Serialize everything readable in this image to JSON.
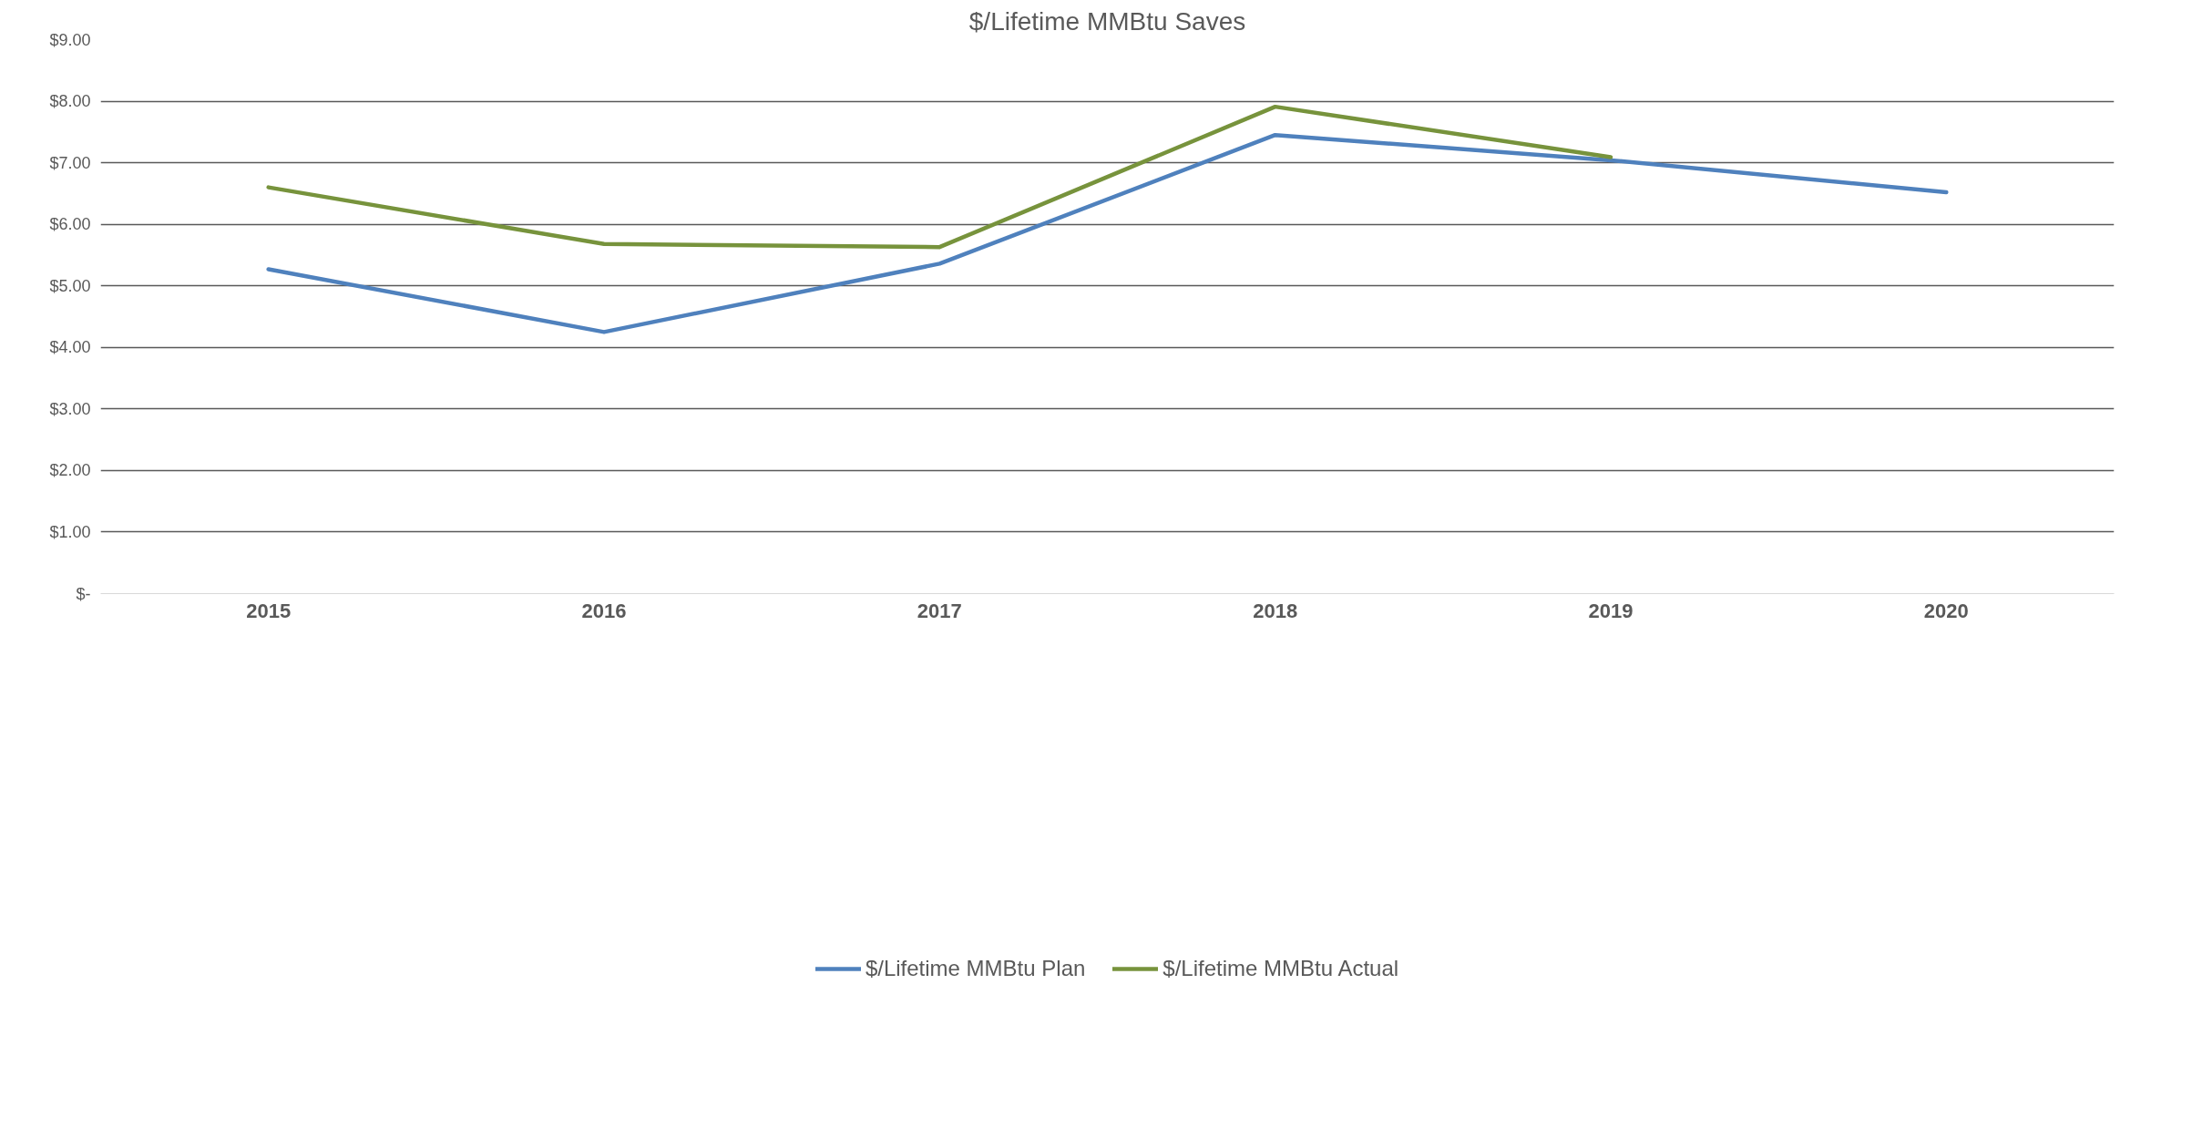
{
  "chart_data": {
    "type": "line",
    "title": "$/Lifetime MMBtu Saves",
    "categories": [
      "2015",
      "2016",
      "2017",
      "2018",
      "2019",
      "2020"
    ],
    "series": [
      {
        "name": "$/Lifetime MMBtu Plan",
        "color": "#4f81bd",
        "values": [
          5.27,
          4.25,
          5.36,
          7.45,
          7.04,
          6.52
        ]
      },
      {
        "name": "$/Lifetime MMBtu Actual",
        "color": "#77933c",
        "values": [
          6.6,
          5.68,
          5.63,
          7.91,
          7.09,
          null
        ]
      }
    ],
    "ylim": [
      0,
      9
    ],
    "yticks": [
      {
        "value": 0,
        "label": "$-"
      },
      {
        "value": 1,
        "label": "$1.00"
      },
      {
        "value": 2,
        "label": "$2.00"
      },
      {
        "value": 3,
        "label": "$3.00"
      },
      {
        "value": 4,
        "label": "$4.00"
      },
      {
        "value": 5,
        "label": "$5.00"
      },
      {
        "value": 6,
        "label": "$6.00"
      },
      {
        "value": 7,
        "label": "$7.00"
      },
      {
        "value": 8,
        "label": "$8.00"
      },
      {
        "value": 9,
        "label": "$9.00"
      }
    ],
    "grid": "y",
    "legend": "bottom",
    "marker": "none",
    "line_style": "solid"
  }
}
